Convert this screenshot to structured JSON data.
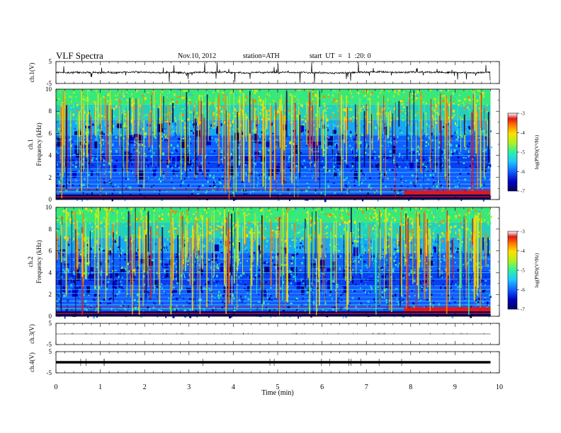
{
  "header": {
    "title": "VLF  Spectra",
    "date": "Nov.10, 2012",
    "station": "station=ATH",
    "start": "start  UT  =   1  :20: 0"
  },
  "colors": {
    "colormap": [
      "#000060",
      "#0000c0",
      "#1060ff",
      "#20c8ff",
      "#30f0a0",
      "#b0f020",
      "#ffe000",
      "#ff8000",
      "#e01818",
      "#ffffff"
    ]
  },
  "chart_data": [
    {
      "type": "line",
      "id": "ch1-waveform",
      "ylabel": "ch.1(V)",
      "ylim": [
        -5,
        5
      ],
      "y_ticks": [
        "5",
        "-5"
      ],
      "xlim": [
        0,
        10
      ],
      "baseline": 0.0,
      "trace_end_x": 9.8
    },
    {
      "type": "heatmap",
      "id": "ch1-spectrogram",
      "ylabel_channel": "ch.1",
      "ylabel": "Frequency  (kHz)",
      "ylim": [
        0,
        10
      ],
      "y_ticks": [
        "0",
        "2",
        "4",
        "6",
        "8",
        "10"
      ],
      "xlim": [
        0,
        10
      ],
      "data_end_x": 9.8,
      "value_range_log_psd": [
        -7,
        -3
      ],
      "colorbar_label": "log(PSD)(V²/Hz)",
      "colorbar_ticks": [
        "-3",
        "-4",
        "-5",
        "-6",
        "-7"
      ]
    },
    {
      "type": "heatmap",
      "id": "ch2-spectrogram",
      "ylabel_channel": "ch.2",
      "ylabel": "Frequency  (kHz)",
      "ylim": [
        0,
        10
      ],
      "y_ticks": [
        "0",
        "2",
        "4",
        "6",
        "8",
        "10"
      ],
      "xlim": [
        0,
        10
      ],
      "data_end_x": 9.8,
      "value_range_log_psd": [
        -7,
        -3
      ],
      "colorbar_label": "log(PSD)(V²/Hz)",
      "colorbar_ticks": [
        "-3",
        "-4",
        "-5",
        "-6",
        "-7"
      ]
    },
    {
      "type": "line",
      "id": "ch3-waveform",
      "ylabel": "ch.3(V)",
      "ylim": [
        -5,
        5
      ],
      "y_ticks": [
        "5",
        "-5"
      ],
      "xlim": [
        0,
        10
      ],
      "baseline": 0.0,
      "trace_end_x": 9.8
    },
    {
      "type": "line",
      "id": "ch4-waveform",
      "ylabel": "ch.4(V)",
      "ylim": [
        -5,
        5
      ],
      "y_ticks": [
        "5",
        "-5"
      ],
      "xlim": [
        0,
        10
      ],
      "baseline": 0.0,
      "trace_end_x": 9.8
    }
  ],
  "x_axis": {
    "label": "Time  (min)",
    "ticks": [
      "0",
      "1",
      "2",
      "3",
      "4",
      "5",
      "6",
      "7",
      "8",
      "9",
      "10"
    ]
  }
}
